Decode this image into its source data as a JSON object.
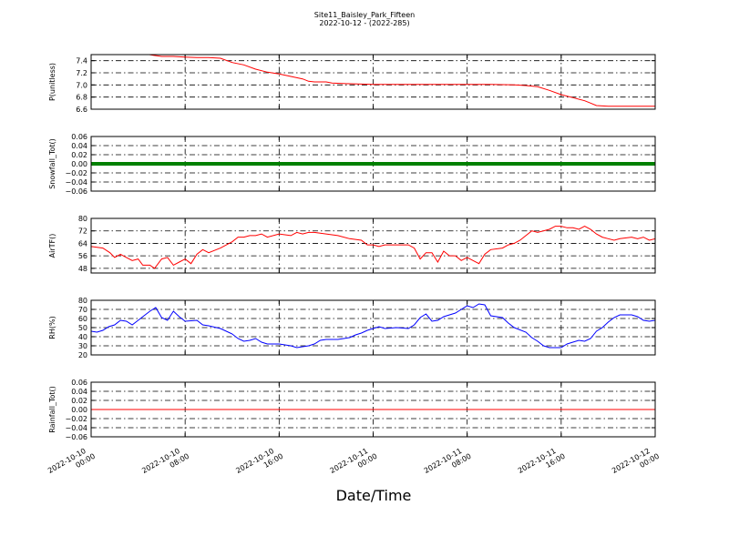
{
  "figure": {
    "title_line1": "Site11_Baisley_Park_Fifteen",
    "title_line2": "2022-10-12 - (2022-285)",
    "xlabel": "Date/Time"
  },
  "chart_data": {
    "type": "line",
    "x_axis": {
      "start": "2022-10-10 00:00",
      "end": "2022-10-12 00:00",
      "ticks": [
        {
          "hours": 0,
          "line1": "2022-10-10",
          "line2": "00:00"
        },
        {
          "hours": 8,
          "line1": "2022-10-10",
          "line2": "08:00"
        },
        {
          "hours": 16,
          "line1": "2022-10-10",
          "line2": "16:00"
        },
        {
          "hours": 24,
          "line1": "2022-10-11",
          "line2": "00:00"
        },
        {
          "hours": 32,
          "line1": "2022-10-11",
          "line2": "08:00"
        },
        {
          "hours": 40,
          "line1": "2022-10-11",
          "line2": "16:00"
        },
        {
          "hours": 48,
          "line1": "2022-10-12",
          "line2": "00:00"
        }
      ]
    },
    "panels": [
      {
        "name": "pressure",
        "ylabel": "P(unitless)",
        "color": "#ff0000",
        "ylim": [
          6.6,
          7.5
        ],
        "yticks": [
          "7.4",
          "7.2",
          "7.0",
          "6.8",
          "6.6"
        ],
        "ytick_values": [
          7.4,
          7.2,
          7.0,
          6.8,
          6.6
        ],
        "grid": true,
        "points": [
          [
            0,
            7.62
          ],
          [
            2,
            7.58
          ],
          [
            4,
            7.53
          ],
          [
            5.3,
            7.49
          ],
          [
            6,
            7.47
          ],
          [
            7,
            7.47
          ],
          [
            8,
            7.46
          ],
          [
            9,
            7.45
          ],
          [
            10,
            7.45
          ],
          [
            11,
            7.44
          ],
          [
            12,
            7.37
          ],
          [
            13,
            7.33
          ],
          [
            14,
            7.26
          ],
          [
            15,
            7.21
          ],
          [
            16,
            7.18
          ],
          [
            17,
            7.14
          ],
          [
            18,
            7.1
          ],
          [
            18.5,
            7.06
          ],
          [
            19,
            7.05
          ],
          [
            20,
            7.05
          ],
          [
            20.5,
            7.03
          ],
          [
            22,
            7.02
          ],
          [
            24,
            7.01
          ],
          [
            26,
            7.01
          ],
          [
            28,
            7.01
          ],
          [
            30,
            7.01
          ],
          [
            32,
            7.01
          ],
          [
            34,
            7.01
          ],
          [
            36,
            7.0
          ],
          [
            37,
            6.99
          ],
          [
            38,
            6.97
          ],
          [
            39,
            6.91
          ],
          [
            40,
            6.84
          ],
          [
            41,
            6.79
          ],
          [
            42,
            6.74
          ],
          [
            42.5,
            6.7
          ],
          [
            43,
            6.66
          ],
          [
            44,
            6.65
          ],
          [
            46,
            6.65
          ],
          [
            48,
            6.65
          ]
        ]
      },
      {
        "name": "snowfall",
        "ylabel": "Snowfall_Tot()",
        "color": "#008000",
        "ylim": [
          -0.06,
          0.06
        ],
        "yticks": [
          "0.06",
          "0.04",
          "0.02",
          "0.00",
          "−0.02",
          "−0.04",
          "−0.06"
        ],
        "ytick_values": [
          0.06,
          0.04,
          0.02,
          0.0,
          -0.02,
          -0.04,
          -0.06
        ],
        "grid": true,
        "constant": 0.0,
        "style": "thick"
      },
      {
        "name": "air-temperature",
        "ylabel": "AirTF()",
        "color": "#ff0000",
        "ylim": [
          45,
          80
        ],
        "yticks": [
          "80",
          "72",
          "64",
          "56",
          "48"
        ],
        "ytick_values": [
          80,
          72,
          64,
          56,
          48
        ],
        "grid": true,
        "points": [
          [
            0,
            62
          ],
          [
            1,
            61
          ],
          [
            1.6,
            58
          ],
          [
            2,
            55
          ],
          [
            2.5,
            57
          ],
          [
            3,
            55
          ],
          [
            3.5,
            53
          ],
          [
            4,
            54
          ],
          [
            4.4,
            50
          ],
          [
            5,
            50
          ],
          [
            5.4,
            48
          ],
          [
            6,
            54
          ],
          [
            6.5,
            55
          ],
          [
            7,
            50
          ],
          [
            7.5,
            52
          ],
          [
            8,
            54
          ],
          [
            8.5,
            51
          ],
          [
            9,
            57
          ],
          [
            9.5,
            60
          ],
          [
            10,
            58
          ],
          [
            11,
            61
          ],
          [
            12,
            65
          ],
          [
            12.5,
            68
          ],
          [
            13,
            68
          ],
          [
            13.5,
            69
          ],
          [
            14,
            69
          ],
          [
            14.5,
            70
          ],
          [
            15,
            68
          ],
          [
            16,
            70
          ],
          [
            17,
            69
          ],
          [
            17.5,
            71
          ],
          [
            18,
            70
          ],
          [
            18.5,
            71
          ],
          [
            19,
            71
          ],
          [
            20,
            70
          ],
          [
            21,
            69
          ],
          [
            22,
            67
          ],
          [
            23,
            66
          ],
          [
            23.5,
            63
          ],
          [
            24,
            63
          ],
          [
            24.5,
            62
          ],
          [
            25,
            63
          ],
          [
            26,
            63
          ],
          [
            27,
            63
          ],
          [
            27.5,
            61
          ],
          [
            28,
            54
          ],
          [
            28.5,
            58
          ],
          [
            29,
            58
          ],
          [
            29.5,
            52
          ],
          [
            30,
            59
          ],
          [
            30.5,
            56
          ],
          [
            31,
            56
          ],
          [
            31.5,
            53
          ],
          [
            32,
            55
          ],
          [
            32.5,
            53
          ],
          [
            33,
            51
          ],
          [
            33.5,
            57
          ],
          [
            34,
            60
          ],
          [
            35,
            61
          ],
          [
            35.5,
            63
          ],
          [
            36,
            64
          ],
          [
            36.5,
            66
          ],
          [
            37,
            69
          ],
          [
            37.5,
            72
          ],
          [
            38,
            71
          ],
          [
            39,
            73
          ],
          [
            39.5,
            75
          ],
          [
            40,
            75
          ],
          [
            40.5,
            74
          ],
          [
            41,
            74
          ],
          [
            41.5,
            73
          ],
          [
            42,
            75
          ],
          [
            42.5,
            73
          ],
          [
            43,
            70
          ],
          [
            43.5,
            68
          ],
          [
            44,
            67
          ],
          [
            44.5,
            66
          ],
          [
            45,
            67
          ],
          [
            46,
            68
          ],
          [
            46.5,
            67
          ],
          [
            47,
            68
          ],
          [
            47.5,
            66
          ],
          [
            48,
            67
          ]
        ]
      },
      {
        "name": "relative-humidity",
        "ylabel": "RH(%)",
        "color": "#0000ff",
        "ylim": [
          20,
          80
        ],
        "yticks": [
          "80",
          "70",
          "60",
          "50",
          "40",
          "30",
          "20"
        ],
        "ytick_values": [
          80,
          70,
          60,
          50,
          40,
          30,
          20
        ],
        "grid": true,
        "points": [
          [
            0,
            46
          ],
          [
            0.5,
            45
          ],
          [
            1,
            47
          ],
          [
            1.5,
            51
          ],
          [
            2,
            53
          ],
          [
            2.5,
            58
          ],
          [
            3,
            57
          ],
          [
            3.5,
            53
          ],
          [
            4,
            58
          ],
          [
            4.5,
            63
          ],
          [
            5,
            68
          ],
          [
            5.5,
            72
          ],
          [
            6,
            61
          ],
          [
            6.5,
            58
          ],
          [
            7,
            68
          ],
          [
            7.5,
            62
          ],
          [
            8,
            57
          ],
          [
            9,
            58
          ],
          [
            9.5,
            53
          ],
          [
            10,
            52
          ],
          [
            11,
            49
          ],
          [
            12,
            43
          ],
          [
            12.5,
            38
          ],
          [
            13,
            35
          ],
          [
            13.5,
            36
          ],
          [
            14,
            38
          ],
          [
            14.5,
            34
          ],
          [
            15,
            32
          ],
          [
            16,
            32
          ],
          [
            17,
            30
          ],
          [
            17.5,
            28
          ],
          [
            18,
            29
          ],
          [
            18.5,
            30
          ],
          [
            19,
            32
          ],
          [
            19.5,
            36
          ],
          [
            20,
            37
          ],
          [
            21,
            37
          ],
          [
            21.5,
            38
          ],
          [
            22,
            39
          ],
          [
            22.5,
            42
          ],
          [
            23,
            44
          ],
          [
            23.5,
            47
          ],
          [
            24,
            49
          ],
          [
            24.5,
            51
          ],
          [
            25,
            49
          ],
          [
            26,
            50
          ],
          [
            27,
            49
          ],
          [
            27.5,
            53
          ],
          [
            28,
            61
          ],
          [
            28.5,
            65
          ],
          [
            29,
            57
          ],
          [
            29.5,
            58
          ],
          [
            30,
            62
          ],
          [
            30.5,
            64
          ],
          [
            31,
            66
          ],
          [
            31.5,
            70
          ],
          [
            32,
            74
          ],
          [
            32.5,
            72
          ],
          [
            33,
            76
          ],
          [
            33.5,
            75
          ],
          [
            34,
            63
          ],
          [
            35,
            61
          ],
          [
            35.5,
            55
          ],
          [
            36,
            50
          ],
          [
            37,
            45
          ],
          [
            37.5,
            39
          ],
          [
            38,
            35
          ],
          [
            38.5,
            30
          ],
          [
            39,
            28
          ],
          [
            40,
            28
          ],
          [
            40.5,
            32
          ],
          [
            41,
            34
          ],
          [
            41.5,
            36
          ],
          [
            42,
            35
          ],
          [
            42.5,
            38
          ],
          [
            43,
            46
          ],
          [
            43.5,
            50
          ],
          [
            44,
            56
          ],
          [
            44.5,
            61
          ],
          [
            45,
            64
          ],
          [
            46,
            64
          ],
          [
            46.5,
            62
          ],
          [
            47,
            58
          ],
          [
            47.5,
            57
          ],
          [
            48,
            58
          ]
        ]
      },
      {
        "name": "rainfall",
        "ylabel": "Rainfall_Tot()",
        "color": "#ff0000",
        "ylim": [
          -0.06,
          0.06
        ],
        "yticks": [
          "0.06",
          "0.04",
          "0.02",
          "0.00",
          "−0.02",
          "−0.04",
          "−0.06"
        ],
        "ytick_values": [
          0.06,
          0.04,
          0.02,
          0.0,
          -0.02,
          -0.04,
          -0.06
        ],
        "grid": true,
        "constant": 0.0,
        "style": "thin"
      }
    ]
  }
}
